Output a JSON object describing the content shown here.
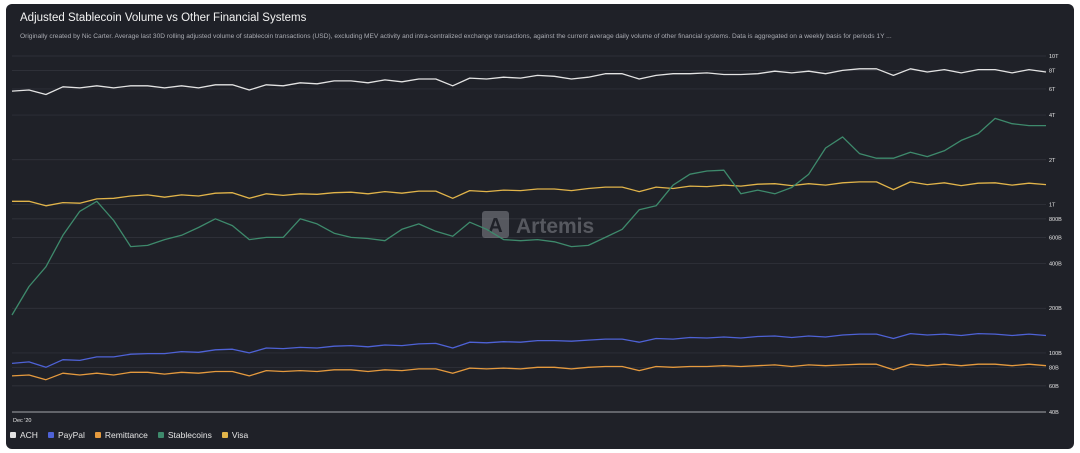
{
  "header": {
    "title": "Adjusted Stablecoin Volume vs Other Financial Systems",
    "subtitle": "Originally created by Nic Carter. Average last 30D rolling adjusted volume of stablecoin transactions (USD), excluding MEV activity and intra-centralized exchange transactions, against the current average daily volume of other financial systems. Data is aggregated on a weekly basis for periods 1Y ..."
  },
  "watermark": {
    "text": "Artemis"
  },
  "colors": {
    "ACH": "#e3e3e3",
    "PayPal": "#4e62d6",
    "Remittance": "#e59a3e",
    "Stablecoins": "#3e8a6c",
    "Visa": "#e1b44a"
  },
  "legend": [
    {
      "name": "ACH"
    },
    {
      "name": "PayPal"
    },
    {
      "name": "Remittance"
    },
    {
      "name": "Stablecoins"
    },
    {
      "name": "Visa"
    }
  ],
  "chart_data": {
    "type": "line",
    "y_scale": "log",
    "ylim": [
      40000000000,
      10000000000000
    ],
    "y_ticks": [
      {
        "value": 10000000000000,
        "label": "10T"
      },
      {
        "value": 8000000000000,
        "label": "8T"
      },
      {
        "value": 6000000000000,
        "label": "6T"
      },
      {
        "value": 4000000000000,
        "label": "4T"
      },
      {
        "value": 2000000000000,
        "label": "2T"
      },
      {
        "value": 1000000000000,
        "label": "1T"
      },
      {
        "value": 800000000000,
        "label": "800B"
      },
      {
        "value": 600000000000,
        "label": "600B"
      },
      {
        "value": 400000000000,
        "label": "400B"
      },
      {
        "value": 200000000000,
        "label": "200B"
      },
      {
        "value": 100000000000,
        "label": "100B"
      },
      {
        "value": 80000000000,
        "label": "80B"
      },
      {
        "value": 60000000000,
        "label": "60B"
      },
      {
        "value": 40000000000,
        "label": "40B"
      }
    ],
    "x_tick_labels": [
      {
        "index": 0,
        "label": "Dec '20"
      }
    ],
    "series": [
      {
        "name": "ACH",
        "values": [
          5.8,
          5.9,
          5.5,
          6.2,
          6.1,
          6.3,
          6.1,
          6.3,
          6.3,
          6.1,
          6.3,
          6.1,
          6.4,
          6.4,
          5.9,
          6.4,
          6.3,
          6.6,
          6.5,
          6.8,
          6.8,
          6.6,
          6.9,
          6.7,
          7.0,
          7.0,
          6.3,
          7.1,
          7.0,
          7.2,
          7.1,
          7.4,
          7.3,
          7.0,
          7.2,
          7.6,
          7.6,
          7.0,
          7.4,
          7.6,
          7.6,
          7.7,
          7.5,
          7.5,
          7.6,
          7.9,
          7.7,
          7.9,
          7.6,
          8.0,
          8.2,
          8.2,
          7.4,
          8.2,
          7.8,
          8.1,
          7.7,
          8.1,
          8.1,
          7.7,
          8.1,
          7.8
        ]
      },
      {
        "name": "PayPal",
        "values": [
          0.085,
          0.087,
          0.08,
          0.09,
          0.089,
          0.094,
          0.094,
          0.098,
          0.099,
          0.099,
          0.102,
          0.101,
          0.105,
          0.106,
          0.1,
          0.108,
          0.107,
          0.109,
          0.108,
          0.111,
          0.112,
          0.11,
          0.113,
          0.112,
          0.115,
          0.116,
          0.108,
          0.118,
          0.117,
          0.119,
          0.118,
          0.121,
          0.121,
          0.12,
          0.122,
          0.124,
          0.124,
          0.118,
          0.125,
          0.124,
          0.127,
          0.126,
          0.128,
          0.126,
          0.129,
          0.13,
          0.127,
          0.13,
          0.128,
          0.132,
          0.134,
          0.134,
          0.125,
          0.135,
          0.132,
          0.134,
          0.131,
          0.135,
          0.134,
          0.131,
          0.134,
          0.131
        ]
      },
      {
        "name": "Remittance",
        "values": [
          0.07,
          0.071,
          0.066,
          0.073,
          0.071,
          0.073,
          0.071,
          0.074,
          0.074,
          0.072,
          0.074,
          0.073,
          0.075,
          0.075,
          0.07,
          0.076,
          0.075,
          0.076,
          0.075,
          0.077,
          0.077,
          0.075,
          0.077,
          0.076,
          0.078,
          0.078,
          0.073,
          0.079,
          0.078,
          0.079,
          0.078,
          0.08,
          0.08,
          0.078,
          0.08,
          0.081,
          0.081,
          0.076,
          0.081,
          0.08,
          0.081,
          0.081,
          0.082,
          0.081,
          0.082,
          0.083,
          0.081,
          0.083,
          0.082,
          0.083,
          0.084,
          0.084,
          0.077,
          0.084,
          0.082,
          0.084,
          0.082,
          0.084,
          0.084,
          0.082,
          0.084,
          0.082
        ]
      },
      {
        "name": "Stablecoins",
        "values": [
          0.18,
          0.28,
          0.38,
          0.62,
          0.9,
          1.05,
          0.78,
          0.52,
          0.53,
          0.58,
          0.62,
          0.7,
          0.8,
          0.72,
          0.58,
          0.6,
          0.6,
          0.8,
          0.74,
          0.64,
          0.6,
          0.59,
          0.57,
          0.68,
          0.74,
          0.66,
          0.61,
          0.76,
          0.68,
          0.58,
          0.57,
          0.58,
          0.56,
          0.52,
          0.53,
          0.6,
          0.68,
          0.92,
          0.98,
          1.35,
          1.6,
          1.68,
          1.7,
          1.18,
          1.25,
          1.18,
          1.3,
          1.6,
          2.4,
          2.85,
          2.2,
          2.05,
          2.05,
          2.25,
          2.1,
          2.3,
          2.7,
          3.0,
          3.8,
          3.5,
          3.4,
          3.4
        ]
      },
      {
        "name": "Visa",
        "values": [
          1.05,
          1.05,
          0.98,
          1.03,
          1.02,
          1.09,
          1.1,
          1.14,
          1.16,
          1.12,
          1.16,
          1.14,
          1.19,
          1.2,
          1.1,
          1.18,
          1.15,
          1.18,
          1.17,
          1.2,
          1.21,
          1.18,
          1.22,
          1.19,
          1.23,
          1.23,
          1.1,
          1.24,
          1.22,
          1.25,
          1.24,
          1.27,
          1.27,
          1.24,
          1.28,
          1.31,
          1.31,
          1.22,
          1.31,
          1.28,
          1.33,
          1.32,
          1.35,
          1.33,
          1.37,
          1.38,
          1.34,
          1.38,
          1.35,
          1.4,
          1.42,
          1.42,
          1.26,
          1.42,
          1.36,
          1.4,
          1.34,
          1.39,
          1.4,
          1.35,
          1.39,
          1.36
        ]
      }
    ],
    "value_unit_multiplier": 1000000000000
  }
}
